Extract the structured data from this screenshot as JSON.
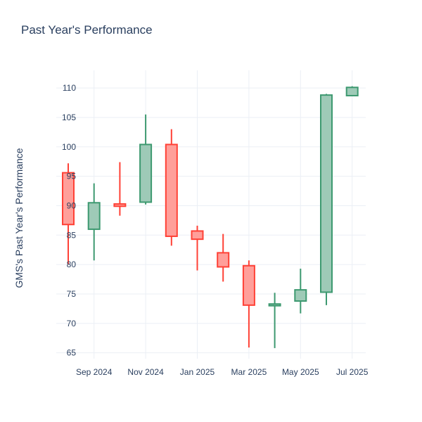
{
  "chart_data": {
    "type": "candlestick",
    "title": "Past Year's Performance",
    "xlabel": "",
    "ylabel": "GMS's Past Year's Performance",
    "ylim": [
      64,
      113
    ],
    "y_ticks": [
      65,
      70,
      75,
      80,
      85,
      90,
      95,
      100,
      105,
      110
    ],
    "x_ticks": [
      {
        "label": "Sep 2024",
        "month_index": 1
      },
      {
        "label": "Nov 2024",
        "month_index": 3
      },
      {
        "label": "Jan 2025",
        "month_index": 5
      },
      {
        "label": "Mar 2025",
        "month_index": 7
      },
      {
        "label": "May 2025",
        "month_index": 9
      },
      {
        "label": "Jul 2025",
        "month_index": 11
      }
    ],
    "grid": true,
    "colors": {
      "up": "#3d9970",
      "up_fill": "#9ecab7",
      "down": "#ff4136",
      "down_fill": "#ff9f9a"
    },
    "candles": [
      {
        "x": "Aug 2024",
        "month_index": 0.0,
        "open": 95.6,
        "high": 97.2,
        "low": 80.0,
        "close": 86.8
      },
      {
        "x": "Sep 2024",
        "month_index": 1.0,
        "open": 86.0,
        "high": 93.8,
        "low": 80.7,
        "close": 90.5
      },
      {
        "x": "Oct 2024",
        "month_index": 2.0,
        "open": 90.3,
        "high": 97.4,
        "low": 88.3,
        "close": 89.9
      },
      {
        "x": "Nov 2024",
        "month_index": 3.0,
        "open": 90.6,
        "high": 105.5,
        "low": 90.2,
        "close": 100.4
      },
      {
        "x": "Dec 2024",
        "month_index": 4.0,
        "open": 100.4,
        "high": 103.0,
        "low": 83.2,
        "close": 84.8
      },
      {
        "x": "Jan 2025",
        "month_index": 5.0,
        "open": 85.7,
        "high": 86.6,
        "low": 79.0,
        "close": 84.3
      },
      {
        "x": "Feb 2025",
        "month_index": 6.0,
        "open": 82.0,
        "high": 85.2,
        "low": 77.1,
        "close": 79.6
      },
      {
        "x": "Mar 2025",
        "month_index": 7.0,
        "open": 79.8,
        "high": 80.7,
        "low": 65.9,
        "close": 73.1
      },
      {
        "x": "Apr 2025",
        "month_index": 8.0,
        "open": 73.0,
        "high": 75.2,
        "low": 65.8,
        "close": 73.3
      },
      {
        "x": "May 2025",
        "month_index": 9.0,
        "open": 73.8,
        "high": 79.3,
        "low": 71.7,
        "close": 75.7
      },
      {
        "x": "Jun 2025",
        "month_index": 10.0,
        "open": 75.3,
        "high": 109.0,
        "low": 73.1,
        "close": 108.8
      },
      {
        "x": "Jul 2025",
        "month_index": 11.0,
        "open": 108.7,
        "high": 110.3,
        "low": 108.7,
        "close": 110.1
      }
    ]
  }
}
